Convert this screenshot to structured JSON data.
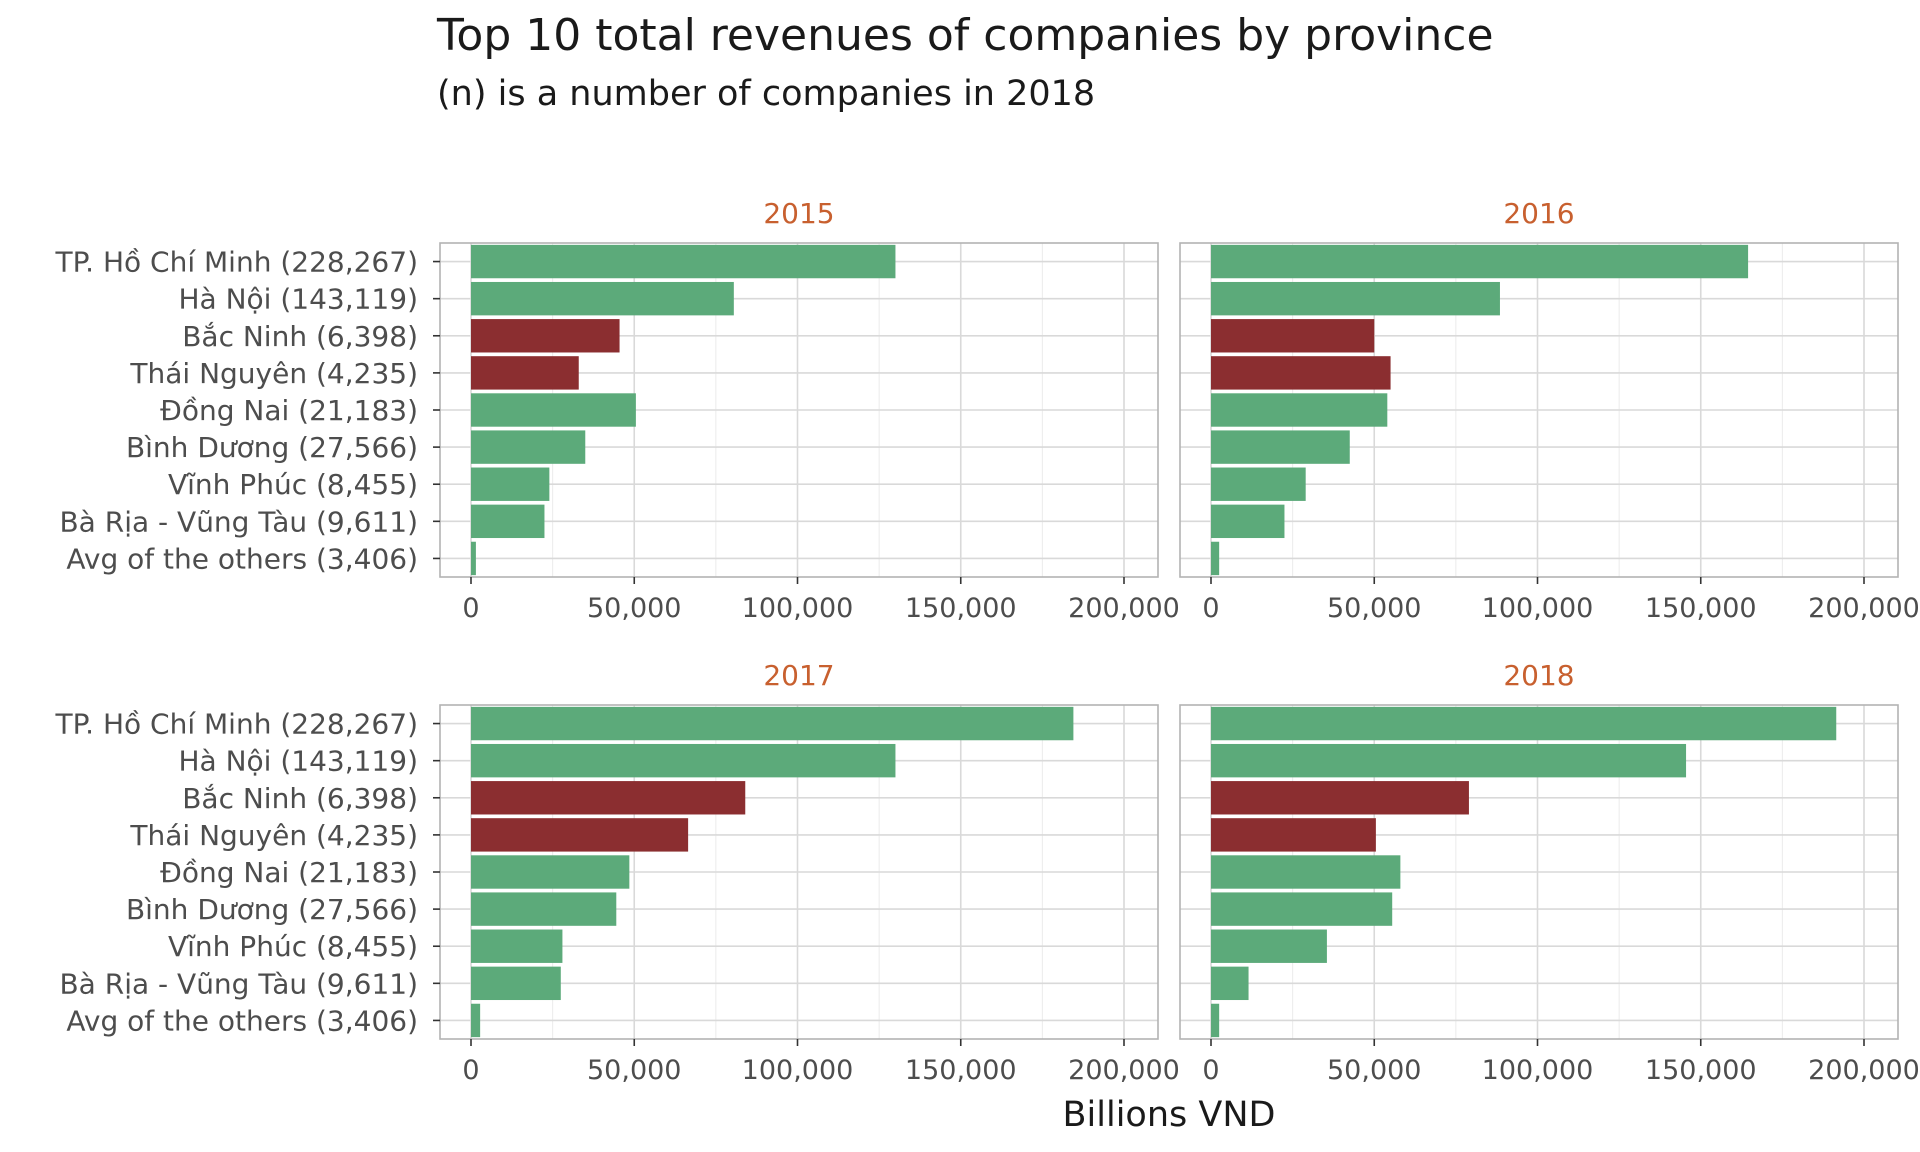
{
  "chart_data": {
    "type": "bar",
    "orientation": "horizontal",
    "title": "Top 10 total revenues of companies by province",
    "subtitle": "(n) is a number of companies in 2018",
    "xlabel": "Billions VND",
    "xlim": [
      0,
      210000
    ],
    "x_ticks": [
      "0",
      "50,000",
      "100,000",
      "150,000",
      "200,000"
    ],
    "grid": true,
    "categories": [
      "TP. Hồ Chí Minh (228,267)",
      "Hà Nội (143,119)",
      "Bắc Ninh (6,398)",
      "Thái Nguyên (4,235)",
      "Đồng Nai (21,183)",
      "Bình Dương (27,566)",
      "Vĩnh Phúc (8,455)",
      "Bà Rịa - Vũng Tàu (9,611)",
      "Avg of the others (3,406)"
    ],
    "highlighted_categories": [
      "Bắc Ninh (6,398)",
      "Thái Nguyên (4,235)"
    ],
    "colors": {
      "normal": "#5caa7a",
      "highlight": "#8b2e30",
      "facet_label": "#c8602f"
    },
    "panels": [
      {
        "label": "2015",
        "values": [
          130000,
          80500,
          45500,
          33000,
          50500,
          35000,
          24000,
          22500,
          1500
        ]
      },
      {
        "label": "2016",
        "values": [
          164500,
          88500,
          50000,
          55000,
          54000,
          42500,
          29000,
          22500,
          2500
        ]
      },
      {
        "label": "2017",
        "values": [
          184500,
          130000,
          84000,
          66500,
          48500,
          44500,
          28000,
          27500,
          2800
        ]
      },
      {
        "label": "2018",
        "values": [
          191500,
          145500,
          79000,
          50500,
          58000,
          55500,
          35500,
          11500,
          2500
        ]
      }
    ]
  }
}
